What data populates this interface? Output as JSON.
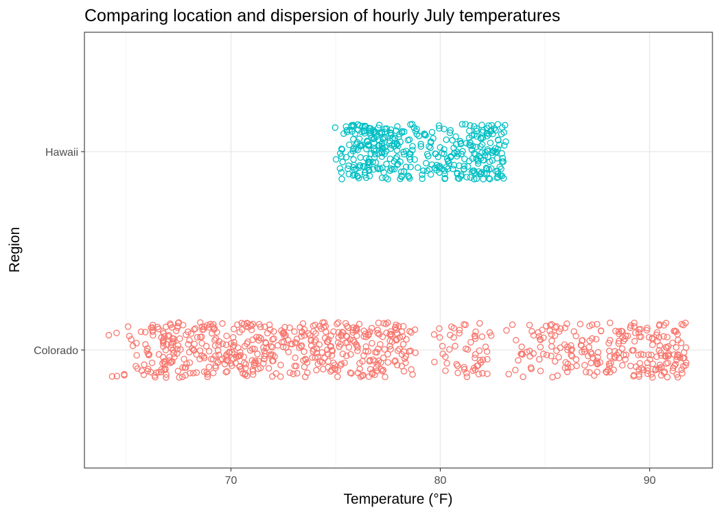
{
  "chart_data": {
    "type": "scatter",
    "title": "Comparing location and dispersion of hourly July temperatures",
    "xlabel": "Temperature (°F)",
    "ylabel": "Region",
    "xlim": [
      63,
      93
    ],
    "x_ticks": [
      70,
      80,
      90
    ],
    "x_tick_labels": [
      "70",
      "80",
      "90"
    ],
    "categories": [
      "Colorado",
      "Hawaii"
    ],
    "jitter_height": 0.14,
    "grid": true,
    "legend": "none",
    "series": [
      {
        "name": "Colorado",
        "color": "#F8766D",
        "marker": "open-circle",
        "points_per_cluster": 10,
        "value_clusters": [
          64.3,
          64.6,
          64.9,
          65.2,
          65.5,
          65.8,
          66.1,
          66.4,
          66.7,
          67.0,
          67.3,
          67.6,
          67.9,
          68.2,
          68.5,
          68.8,
          69.1,
          69.4,
          69.7,
          70.0,
          70.3,
          70.6,
          70.9,
          71.2,
          71.5,
          71.8,
          72.1,
          72.4,
          72.7,
          73.0,
          73.3,
          73.6,
          73.9,
          74.2,
          74.5,
          74.8,
          75.1,
          75.4,
          75.7,
          76.0,
          76.3,
          76.6,
          76.9,
          77.2,
          77.5,
          77.8,
          78.1,
          78.4,
          78.7,
          79.6,
          80.0,
          80.4,
          80.8,
          81.2,
          81.6,
          81.9,
          82.3,
          83.2,
          83.6,
          84.0,
          84.4,
          84.8,
          85.2,
          85.6,
          86.0,
          86.4,
          86.8,
          87.2,
          87.6,
          88.0,
          88.4,
          88.8,
          89.2,
          89.6,
          90.0,
          90.4,
          90.8,
          91.2,
          91.6
        ],
        "value_weights": [
          1,
          1,
          1,
          2,
          2,
          3,
          5,
          6,
          8,
          8,
          7,
          6,
          6,
          5,
          5,
          6,
          6,
          6,
          6,
          6,
          6,
          7,
          7,
          7,
          6,
          5,
          5,
          5,
          4,
          5,
          5,
          5,
          6,
          6,
          7,
          7,
          6,
          6,
          6,
          6,
          6,
          6,
          6,
          6,
          6,
          6,
          5,
          4,
          3,
          1,
          2,
          3,
          4,
          4,
          5,
          5,
          3,
          1,
          2,
          3,
          4,
          5,
          5,
          5,
          5,
          5,
          5,
          6,
          6,
          6,
          6,
          6,
          6,
          7,
          8,
          9,
          9,
          9,
          7
        ]
      },
      {
        "name": "Hawaii",
        "color": "#00BFC4",
        "marker": "open-circle",
        "points_per_cluster": 10,
        "value_clusters": [
          75.1,
          75.4,
          75.7,
          76.0,
          76.3,
          76.6,
          76.9,
          77.2,
          77.5,
          77.8,
          78.1,
          78.4,
          78.7,
          79.0,
          79.3,
          79.6,
          79.9,
          80.2,
          80.5,
          80.8,
          81.1,
          81.4,
          81.7,
          82.0,
          82.3,
          82.6,
          82.9,
          83.1
        ],
        "value_weights": [
          2,
          5,
          8,
          10,
          11,
          12,
          11,
          10,
          9,
          8,
          7,
          6,
          5,
          4,
          4,
          5,
          6,
          6,
          6,
          6,
          7,
          8,
          9,
          10,
          10,
          9,
          6,
          3
        ]
      }
    ]
  }
}
